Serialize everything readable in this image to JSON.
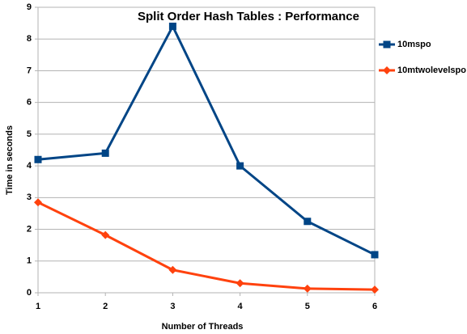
{
  "chart_data": {
    "type": "line",
    "title": "Split Order Hash Tables : Performance",
    "x_label": "Number of Threads",
    "y_label": "Time in seconds",
    "x": [
      1,
      2,
      3,
      4,
      5,
      6
    ],
    "xlim": [
      1,
      6
    ],
    "xticks": [
      1,
      2,
      3,
      4,
      5,
      6
    ],
    "ylim": [
      0,
      9
    ],
    "yticks": [
      0,
      1,
      2,
      3,
      4,
      5,
      6,
      7,
      8,
      9
    ],
    "grid": true,
    "legend": "right",
    "series": [
      {
        "name": "10mspo",
        "color": "#004586",
        "marker": "square",
        "values": [
          4.2,
          4.4,
          8.4,
          4.0,
          2.25,
          1.2
        ]
      },
      {
        "name": "10mtwolevelspo",
        "color": "#ff420e",
        "marker": "diamond",
        "values": [
          2.85,
          1.82,
          0.72,
          0.3,
          0.13,
          0.1
        ]
      }
    ]
  }
}
